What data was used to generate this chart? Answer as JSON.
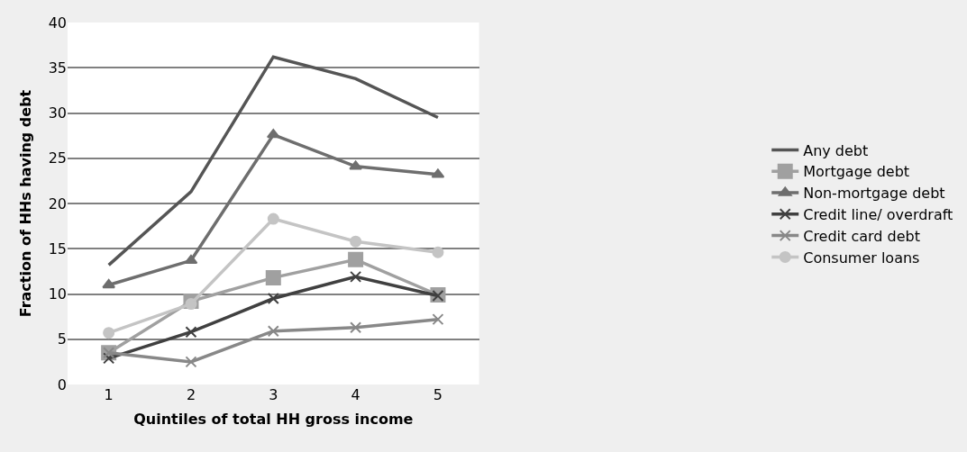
{
  "chart_data": {
    "type": "line",
    "xlabel": "Quintiles of total HH gross income",
    "ylabel": "Fraction of HHs having debt",
    "categories": [
      "1",
      "2",
      "3",
      "4",
      "5"
    ],
    "series": [
      {
        "name": "Any debt",
        "color": "#555555",
        "marker": "none",
        "values": [
          13.2,
          21.3,
          36.2,
          33.8,
          29.5
        ]
      },
      {
        "name": "Mortgage debt",
        "color": "#a0a0a0",
        "marker": "square",
        "values": [
          3.5,
          9.2,
          11.8,
          13.8,
          9.9
        ]
      },
      {
        "name": "Non-mortgage debt",
        "color": "#6e6e6e",
        "marker": "triangle",
        "values": [
          11.0,
          13.7,
          27.6,
          24.1,
          23.2
        ]
      },
      {
        "name": "Credit line/ overdraft",
        "color": "#404040",
        "marker": "cross",
        "values": [
          2.9,
          5.8,
          9.5,
          11.9,
          9.8
        ]
      },
      {
        "name": "Credit card debt",
        "color": "#888888",
        "marker": "cross",
        "values": [
          3.5,
          2.5,
          5.9,
          6.3,
          7.2
        ]
      },
      {
        "name": "Consumer loans",
        "color": "#c4c4c4",
        "marker": "circle",
        "values": [
          5.7,
          8.9,
          18.3,
          15.8,
          14.6
        ]
      }
    ],
    "ylim": [
      0,
      40
    ],
    "yticks": [
      0,
      5,
      10,
      15,
      20,
      25,
      30,
      35,
      40
    ],
    "grid": "y",
    "legend": "right"
  }
}
